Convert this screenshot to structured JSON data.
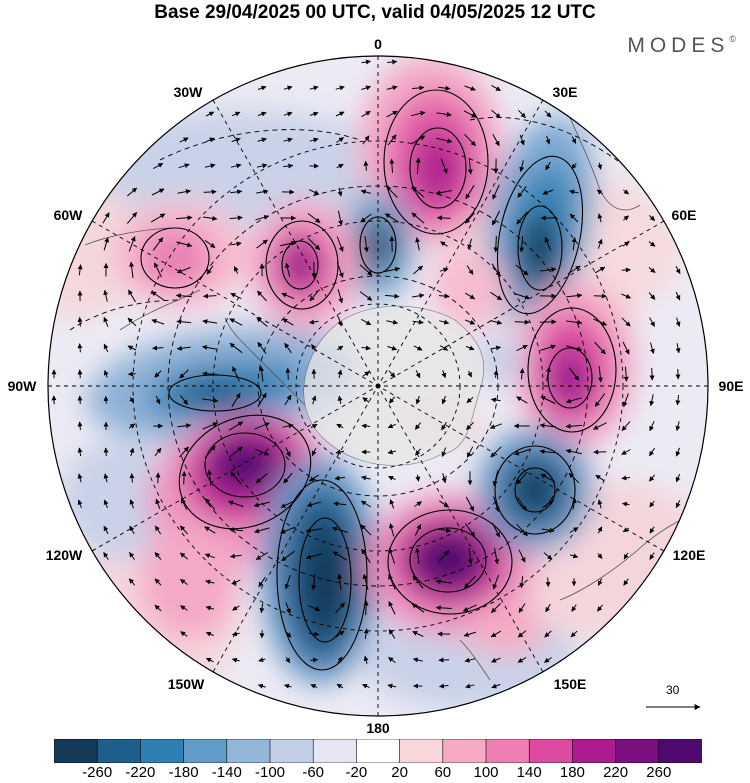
{
  "title": "Base 29/04/2025 00 UTC, valid 04/05/2025 12 UTC",
  "brand": "MODES",
  "brand_mark": "©",
  "map": {
    "projection": "south-polar-stereographic",
    "longitude_labels": {
      "top": "0",
      "top_right": "30E",
      "right_upper": "60E",
      "right": "90E",
      "right_lower": "120E",
      "bottom_right": "150E",
      "bottom": "180",
      "bottom_left": "150W",
      "left_lower": "120W",
      "left": "90W",
      "left_upper": "60W",
      "top_left": "30W"
    }
  },
  "vector_reference": {
    "label": "30"
  },
  "colorbar": {
    "ticks": [
      "-260",
      "-220",
      "-180",
      "-140",
      "-100",
      "-60",
      "-20",
      "20",
      "60",
      "100",
      "140",
      "180",
      "220",
      "260"
    ],
    "colors": [
      "#153a5a",
      "#1c5f8a",
      "#2f7fb3",
      "#5f9dc7",
      "#94b6d8",
      "#c3cde6",
      "#e6e6f2",
      "#ffffff",
      "#f9d6da",
      "#f6aac3",
      "#ef7fb2",
      "#dc4ba0",
      "#ac1c8f",
      "#7b0f80",
      "#4e0a6e"
    ]
  },
  "colors": {
    "land": "#e6e6e6",
    "grid": "#000000"
  }
}
